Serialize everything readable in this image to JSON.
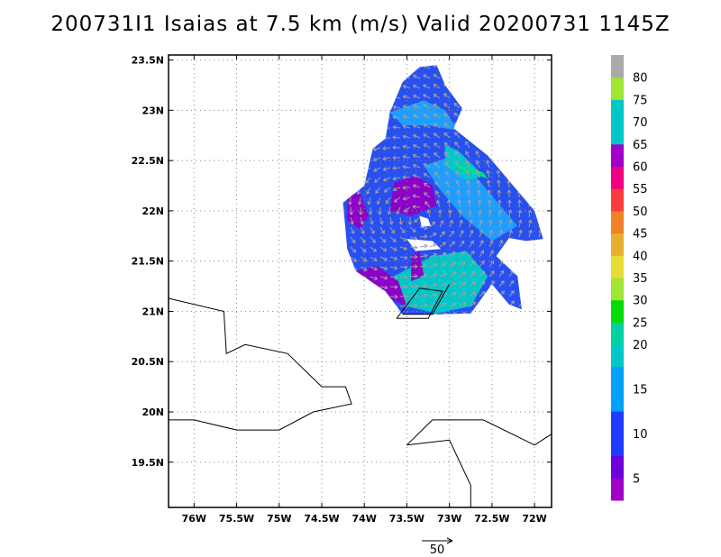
{
  "title": "200731I1 Isaias at 7.5 km (m/s) Valid 20200731 1145Z",
  "map": {
    "lon_range": [
      -76.3,
      -71.8
    ],
    "lat_range": [
      19.05,
      23.55
    ],
    "x_ticks": [
      {
        "lon": -76.0,
        "label": "76W"
      },
      {
        "lon": -75.5,
        "label": "75.5W"
      },
      {
        "lon": -75.0,
        "label": "75W"
      },
      {
        "lon": -74.5,
        "label": "74.5W"
      },
      {
        "lon": -74.0,
        "label": "74W"
      },
      {
        "lon": -73.5,
        "label": "73.5W"
      },
      {
        "lon": -73.0,
        "label": "73W"
      },
      {
        "lon": -72.5,
        "label": "72.5W"
      },
      {
        "lon": -72.0,
        "label": "72W"
      }
    ],
    "y_ticks": [
      {
        "lat": 23.5,
        "label": "23.5N"
      },
      {
        "lat": 23.0,
        "label": "23N"
      },
      {
        "lat": 22.5,
        "label": "22.5N"
      },
      {
        "lat": 22.0,
        "label": "22N"
      },
      {
        "lat": 21.5,
        "label": "21.5N"
      },
      {
        "lat": 21.0,
        "label": "21N"
      },
      {
        "lat": 20.5,
        "label": "20.5N"
      },
      {
        "lat": 20.0,
        "label": "20N"
      },
      {
        "lat": 19.5,
        "label": "19.5N"
      }
    ],
    "grid": "dotted",
    "coastlines": [
      [
        [
          -76.3,
          21.13
        ],
        [
          -75.65,
          21.0
        ],
        [
          -75.62,
          20.58
        ],
        [
          -75.4,
          20.67
        ],
        [
          -74.9,
          20.58
        ],
        [
          -74.5,
          20.25
        ],
        [
          -74.22,
          20.25
        ],
        [
          -74.15,
          20.08
        ],
        [
          -74.6,
          20.0
        ],
        [
          -75.0,
          19.82
        ],
        [
          -75.5,
          19.82
        ],
        [
          -76.0,
          19.92
        ],
        [
          -76.3,
          19.92
        ]
      ],
      [
        [
          -73.5,
          19.67
        ],
        [
          -73.2,
          19.92
        ],
        [
          -72.6,
          19.92
        ],
        [
          -72.0,
          19.67
        ],
        [
          -71.8,
          19.78
        ]
      ],
      [
        [
          -73.5,
          19.67
        ],
        [
          -73.0,
          19.72
        ],
        [
          -72.75,
          19.27
        ],
        [
          -72.75,
          19.05
        ]
      ],
      [
        [
          -73.55,
          20.97
        ],
        [
          -73.2,
          20.97
        ],
        [
          -73.0,
          21.27
        ]
      ],
      [
        [
          -73.62,
          20.93
        ],
        [
          -73.35,
          21.23
        ],
        [
          -73.08,
          21.2
        ],
        [
          -73.25,
          20.93
        ],
        [
          -73.62,
          20.93
        ]
      ]
    ],
    "wind_field": {
      "domain_polygon": [
        [
          -73.35,
          23.43
        ],
        [
          -73.15,
          23.45
        ],
        [
          -73.05,
          23.25
        ],
        [
          -72.85,
          23.02
        ],
        [
          -72.95,
          22.82
        ],
        [
          -72.55,
          22.55
        ],
        [
          -72.0,
          22.0
        ],
        [
          -71.9,
          21.72
        ],
        [
          -72.1,
          21.7
        ],
        [
          -72.3,
          21.73
        ],
        [
          -72.45,
          21.55
        ],
        [
          -72.2,
          21.35
        ],
        [
          -72.15,
          21.02
        ],
        [
          -72.3,
          21.07
        ],
        [
          -72.5,
          21.27
        ],
        [
          -72.75,
          20.98
        ],
        [
          -73.15,
          20.97
        ],
        [
          -73.55,
          20.97
        ],
        [
          -73.75,
          21.2
        ],
        [
          -74.1,
          21.4
        ],
        [
          -74.2,
          21.62
        ],
        [
          -74.25,
          22.08
        ],
        [
          -74.0,
          22.25
        ],
        [
          -73.9,
          22.62
        ],
        [
          -73.75,
          22.72
        ],
        [
          -73.7,
          22.98
        ],
        [
          -73.55,
          23.28
        ]
      ],
      "holes": [
        [
          [
            -73.5,
            21.72
          ],
          [
            -73.2,
            21.7
          ],
          [
            -73.1,
            21.62
          ],
          [
            -73.4,
            21.6
          ],
          [
            -73.5,
            21.72
          ]
        ],
        [
          [
            -73.35,
            21.95
          ],
          [
            -73.25,
            21.92
          ],
          [
            -73.22,
            21.85
          ],
          [
            -73.33,
            21.84
          ]
        ]
      ],
      "regions": [
        {
          "speed_bin": "15-20",
          "color": "#1e9eff",
          "polygon": [
            [
              -73.7,
              22.98
            ],
            [
              -73.3,
              23.1
            ],
            [
              -73.05,
              23.0
            ],
            [
              -72.9,
              22.8
            ],
            [
              -73.25,
              22.85
            ],
            [
              -73.55,
              22.85
            ]
          ]
        },
        {
          "speed_bin": "15-20",
          "color": "#1e9eff",
          "polygon": [
            [
              -73.3,
              22.45
            ],
            [
              -72.95,
              22.55
            ],
            [
              -72.7,
              22.35
            ],
            [
              -72.45,
              22.1
            ],
            [
              -72.2,
              21.85
            ],
            [
              -72.5,
              21.7
            ],
            [
              -72.85,
              21.95
            ],
            [
              -73.1,
              22.2
            ]
          ]
        },
        {
          "speed_bin": "20-25",
          "color": "#00c8c8",
          "polygon": [
            [
              -73.05,
              22.65
            ],
            [
              -72.9,
              22.6
            ],
            [
              -72.6,
              22.35
            ],
            [
              -72.8,
              22.3
            ],
            [
              -73.05,
              22.45
            ]
          ]
        },
        {
          "speed_bin": "20-25",
          "color": "#00c8c8",
          "polygon": [
            [
              -73.65,
              21.35
            ],
            [
              -73.2,
              21.55
            ],
            [
              -72.8,
              21.6
            ],
            [
              -72.55,
              21.35
            ],
            [
              -72.75,
              21.05
            ],
            [
              -73.15,
              20.98
            ],
            [
              -73.5,
              21.05
            ]
          ]
        },
        {
          "speed_bin": "25-30",
          "color": "#00dc8c",
          "polygon": [
            [
              -72.95,
              22.48
            ],
            [
              -72.6,
              22.38
            ],
            [
              -72.55,
              22.32
            ],
            [
              -72.9,
              22.42
            ]
          ]
        },
        {
          "speed_bin": "5-10",
          "color": "#8c00c8",
          "polygon": [
            [
              -74.2,
              22.15
            ],
            [
              -74.05,
              22.18
            ],
            [
              -73.95,
              21.95
            ],
            [
              -74.05,
              21.82
            ],
            [
              -74.2,
              21.9
            ]
          ]
        },
        {
          "speed_bin": "5-10",
          "color": "#8c00c8",
          "polygon": [
            [
              -73.65,
              22.28
            ],
            [
              -73.4,
              22.35
            ],
            [
              -73.2,
              22.25
            ],
            [
              -73.15,
              22.05
            ],
            [
              -73.45,
              21.95
            ],
            [
              -73.7,
              22.0
            ]
          ]
        },
        {
          "speed_bin": "5-10",
          "color": "#8c00c8",
          "polygon": [
            [
              -74.1,
              21.4
            ],
            [
              -73.85,
              21.45
            ],
            [
              -73.6,
              21.3
            ],
            [
              -73.5,
              21.05
            ],
            [
              -73.75,
              21.15
            ]
          ]
        },
        {
          "speed_bin": "5-10",
          "color": "#8c00c8",
          "polygon": [
            [
              -73.45,
              21.55
            ],
            [
              -73.35,
              21.6
            ],
            [
              -73.3,
              21.35
            ],
            [
              -73.45,
              21.3
            ]
          ]
        }
      ],
      "arrow_color": "#a0a0a0"
    },
    "reference_vector": {
      "value": 50,
      "label": "50"
    }
  },
  "colorbar": {
    "bins": [
      {
        "color": "#a000c8",
        "label": "5"
      },
      {
        "color": "#6e00dc",
        "label": ""
      },
      {
        "color": "#1e3cff",
        "label": "10"
      },
      {
        "color": "#1e3cff",
        "label": ""
      },
      {
        "color": "#00a0ff",
        "label": "15"
      },
      {
        "color": "#00a0ff",
        "label": ""
      },
      {
        "color": "#00c8c8",
        "label": "20"
      },
      {
        "color": "#00d2a0",
        "label": "25"
      },
      {
        "color": "#00dc00",
        "label": "30"
      },
      {
        "color": "#a0e632",
        "label": "35"
      },
      {
        "color": "#e6dc32",
        "label": "40"
      },
      {
        "color": "#e6af2d",
        "label": "45"
      },
      {
        "color": "#f08228",
        "label": "50"
      },
      {
        "color": "#fa3c3c",
        "label": "55"
      },
      {
        "color": "#f00082",
        "label": "60"
      },
      {
        "color": "#a000c8",
        "label": "65"
      },
      {
        "color": "#00c8c8",
        "label": "70"
      },
      {
        "color": "#00c8c8",
        "label": "75"
      },
      {
        "color": "#a0e632",
        "label": "80"
      },
      {
        "color": "#aaaaaa",
        "label": ""
      }
    ]
  }
}
